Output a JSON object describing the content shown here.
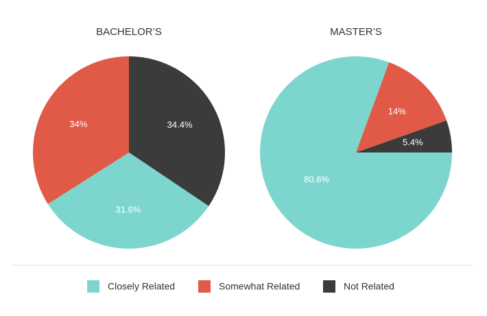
{
  "chart_data": [
    {
      "type": "pie",
      "title": "BACHELOR’S",
      "values": [
        34.4,
        31.6,
        34
      ],
      "value_labels": [
        "34.4%",
        "31.6%",
        "34%"
      ],
      "colors": [
        "#3b3b3b",
        "#7dd6ce",
        "#e05a47"
      ]
    },
    {
      "type": "pie",
      "title": "MASTER’S",
      "values": [
        80.6,
        14,
        5.4
      ],
      "value_labels": [
        "80.6%",
        "14%",
        "5.4%"
      ],
      "colors": [
        "#7dd6ce",
        "#e05a47",
        "#3b3b3b"
      ]
    }
  ],
  "legend": [
    {
      "name": "Closely Related",
      "color": "#7dd6ce"
    },
    {
      "name": "Somewhat Related",
      "color": "#e05a47"
    },
    {
      "name": "Not Related",
      "color": "#3b3b3b"
    }
  ]
}
